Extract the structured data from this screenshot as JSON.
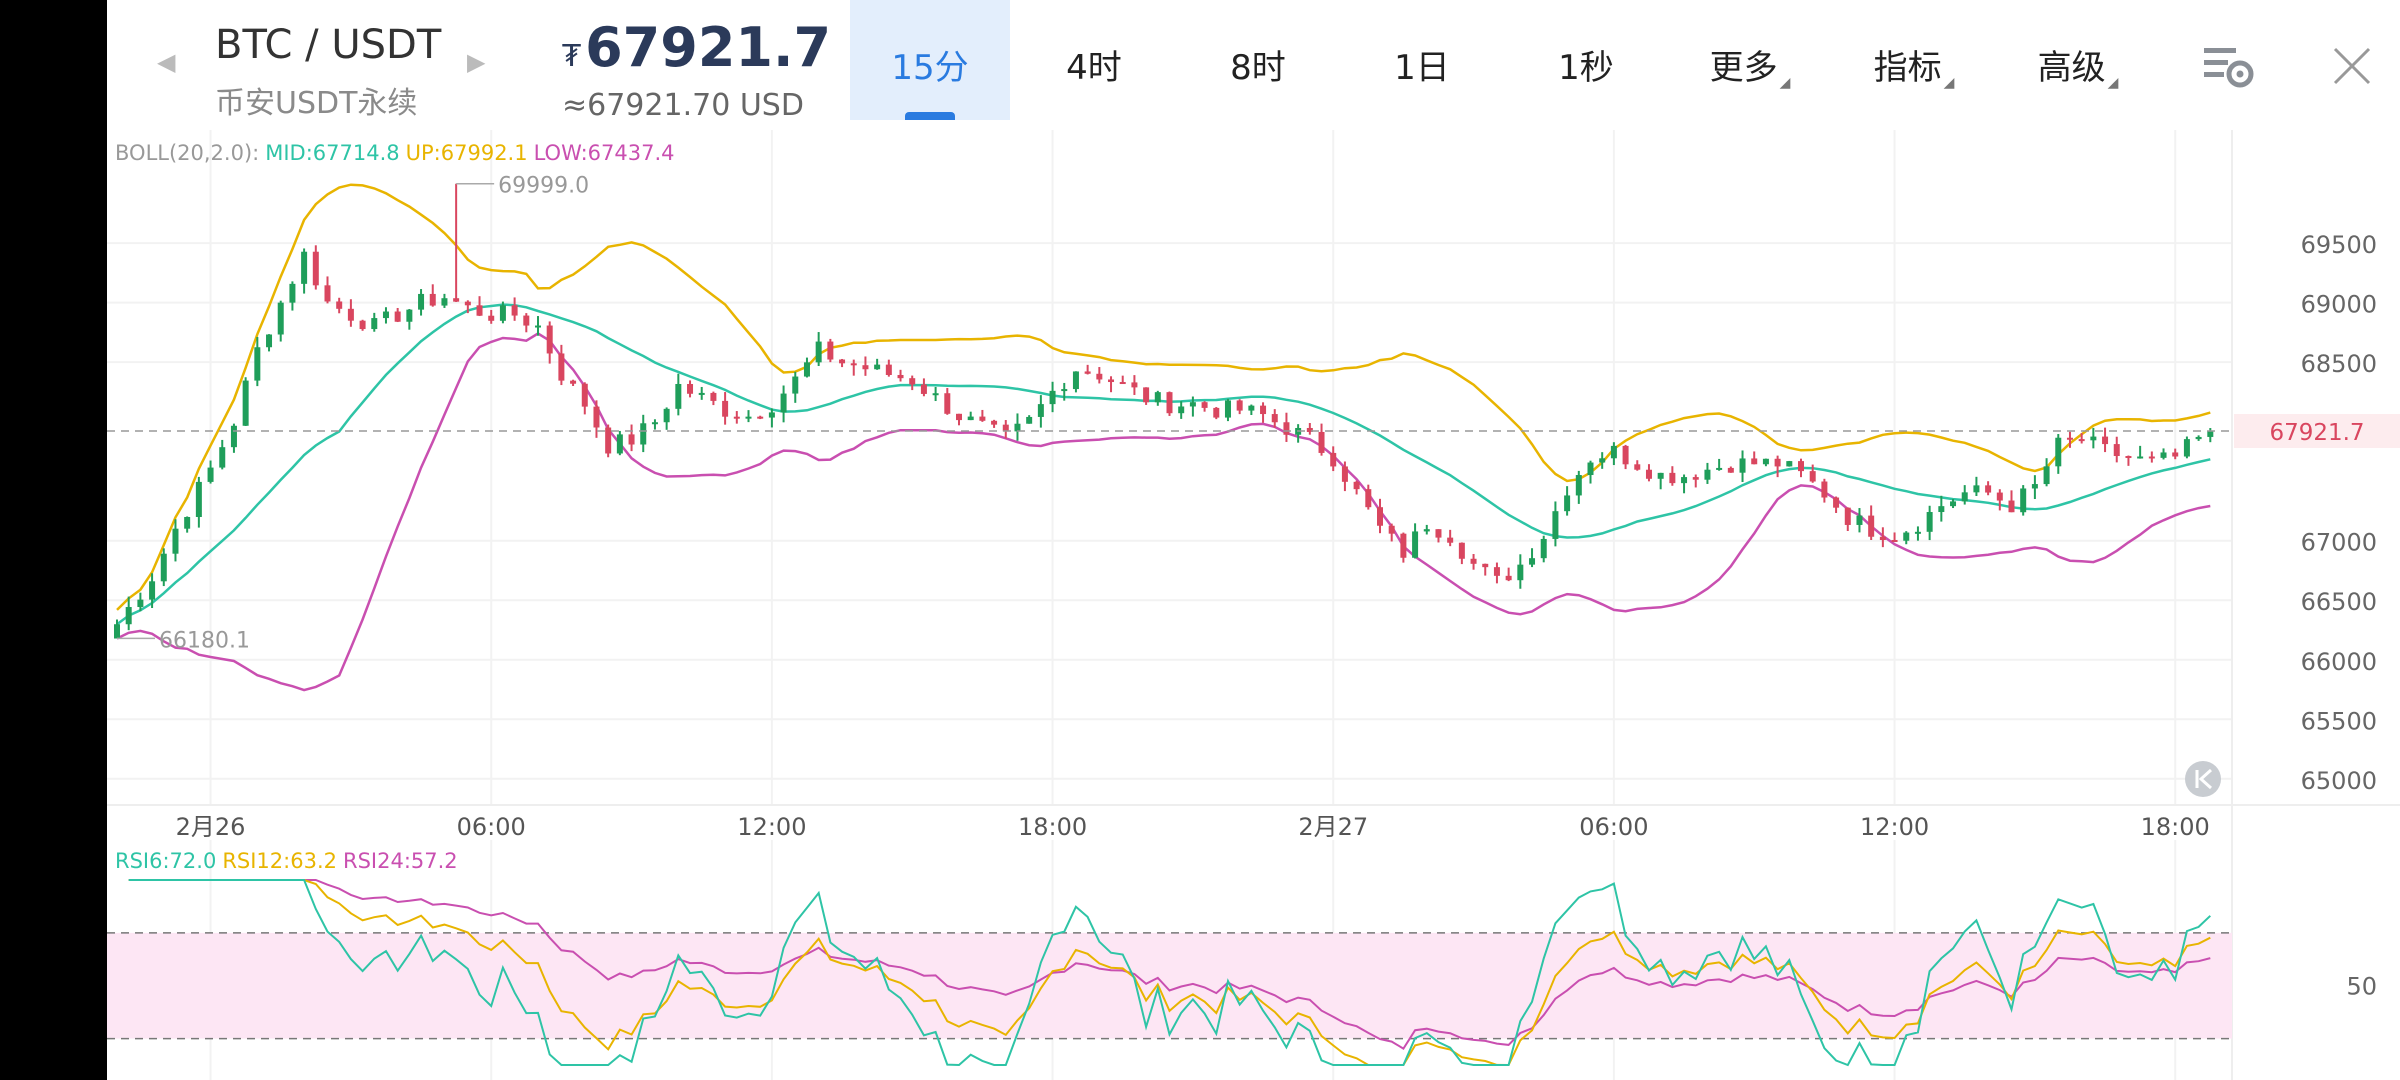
{
  "header": {
    "pair": "BTC / USDT",
    "market": "币安USDT永续",
    "price": "67921.7",
    "currency_symbol": "₮",
    "price_usd": "≈67921.70 USD",
    "tabs": [
      {
        "label": "15分",
        "active": true
      },
      {
        "label": "4时",
        "active": false
      },
      {
        "label": "8时",
        "active": false
      },
      {
        "label": "1日",
        "active": false
      },
      {
        "label": "1秒",
        "active": false
      },
      {
        "label": "更多",
        "active": false
      },
      {
        "label": "指标",
        "active": false
      },
      {
        "label": "高级",
        "active": false
      }
    ],
    "icons": [
      "chart-settings-icon",
      "close-icon"
    ]
  },
  "colors": {
    "up": "#1f9e5a",
    "down": "#d9465f",
    "boll_mid": "#2ec4a6",
    "boll_up": "#e8b400",
    "boll_low": "#c94fb0",
    "rsi6": "#2ec4a6",
    "rsi12": "#e8b400",
    "rsi24": "#c94fb0",
    "rsi_band": "#fde6f4",
    "last_price": "#d9465f",
    "accent": "#2a7be0"
  },
  "chart_data": {
    "type": "candlestick",
    "boll_legend": {
      "label": "BOLL(20,2.0):",
      "mid": "MID:67714.8",
      "up": "UP:67992.1",
      "low": "LOW:67437.4"
    },
    "rsi_legend": {
      "rsi6": "RSI6:72.0",
      "rsi12": "RSI12:63.2",
      "rsi24": "RSI24:57.2"
    },
    "y_ticks": [
      "69500",
      "69000",
      "68500",
      "67000",
      "66500",
      "66000",
      "65500",
      "65000"
    ],
    "y_tick_values": [
      69500,
      69000,
      68500,
      67000,
      66500,
      66000,
      65500,
      65000
    ],
    "ylim": [
      64780,
      70450
    ],
    "last_price": "67921.7",
    "last_price_value": 67921.7,
    "high_marker": "69999.0",
    "high_marker_value": 69999.0,
    "low_marker": "66180.1",
    "low_marker_value": 66180.1,
    "x_ticks": [
      "2月26",
      "06:00",
      "12:00",
      "18:00",
      "2月27",
      "06:00",
      "12:00",
      "18:00"
    ],
    "x_tick_index": [
      8,
      32,
      56,
      80,
      104,
      128,
      152,
      176
    ],
    "x_range": [
      0,
      177
    ],
    "rsi_ticks": [
      "50"
    ],
    "rsi_ylim": [
      20,
      90
    ],
    "rsi_lines": [
      70,
      30
    ],
    "candles_note": "OHLC anchors",
    "close_path": [
      [
        0,
        66300
      ],
      [
        3,
        66700
      ],
      [
        5,
        67100
      ],
      [
        8,
        67600
      ],
      [
        10,
        68000
      ],
      [
        12,
        68600
      ],
      [
        14,
        69000
      ],
      [
        16,
        69400
      ],
      [
        18,
        69000
      ],
      [
        20,
        68900
      ],
      [
        22,
        68800
      ],
      [
        24,
        68900
      ],
      [
        26,
        69000
      ],
      [
        28,
        69050
      ],
      [
        30,
        68950
      ],
      [
        32,
        68900
      ],
      [
        34,
        68900
      ],
      [
        36,
        68800
      ],
      [
        38,
        68400
      ],
      [
        40,
        68150
      ],
      [
        42,
        67800
      ],
      [
        44,
        67850
      ],
      [
        46,
        68000
      ],
      [
        48,
        68300
      ],
      [
        50,
        68200
      ],
      [
        52,
        68100
      ],
      [
        54,
        68050
      ],
      [
        56,
        68150
      ],
      [
        58,
        68350
      ],
      [
        60,
        68600
      ],
      [
        62,
        68500
      ],
      [
        64,
        68450
      ],
      [
        66,
        68400
      ],
      [
        68,
        68350
      ],
      [
        70,
        68200
      ],
      [
        72,
        68050
      ],
      [
        74,
        67950
      ],
      [
        76,
        67850
      ],
      [
        78,
        68000
      ],
      [
        80,
        68250
      ],
      [
        82,
        68450
      ],
      [
        84,
        68400
      ],
      [
        86,
        68300
      ],
      [
        88,
        68200
      ],
      [
        90,
        68150
      ],
      [
        92,
        68150
      ],
      [
        94,
        68100
      ],
      [
        96,
        68100
      ],
      [
        98,
        68050
      ],
      [
        100,
        67950
      ],
      [
        102,
        67850
      ],
      [
        104,
        67700
      ],
      [
        106,
        67400
      ],
      [
        108,
        67100
      ],
      [
        110,
        66900
      ],
      [
        112,
        67150
      ],
      [
        114,
        67050
      ],
      [
        116,
        66800
      ],
      [
        118,
        66650
      ],
      [
        120,
        66800
      ],
      [
        122,
        67050
      ],
      [
        124,
        67450
      ],
      [
        126,
        67700
      ],
      [
        128,
        67750
      ],
      [
        130,
        67650
      ],
      [
        132,
        67550
      ],
      [
        134,
        67550
      ],
      [
        136,
        67600
      ],
      [
        138,
        67650
      ],
      [
        140,
        67650
      ],
      [
        142,
        67650
      ],
      [
        144,
        67550
      ],
      [
        146,
        67400
      ],
      [
        148,
        67200
      ],
      [
        150,
        67100
      ],
      [
        152,
        67050
      ],
      [
        154,
        67150
      ],
      [
        156,
        67300
      ],
      [
        158,
        67400
      ],
      [
        160,
        67400
      ],
      [
        162,
        67300
      ],
      [
        164,
        67450
      ],
      [
        166,
        67800
      ],
      [
        168,
        67850
      ],
      [
        170,
        67750
      ],
      [
        172,
        67700
      ],
      [
        174,
        67650
      ],
      [
        176,
        67700
      ],
      [
        178,
        67850
      ],
      [
        179,
        67920
      ]
    ],
    "high_index": 29,
    "low_index": 0,
    "series": [
      {
        "name": "MID",
        "values_note": "Bollinger middle band"
      },
      {
        "name": "UP",
        "values_note": "Bollinger upper band"
      },
      {
        "name": "LOW",
        "values_note": "Bollinger lower band"
      },
      {
        "name": "RSI6"
      },
      {
        "name": "RSI12"
      },
      {
        "name": "RSI24"
      }
    ]
  }
}
